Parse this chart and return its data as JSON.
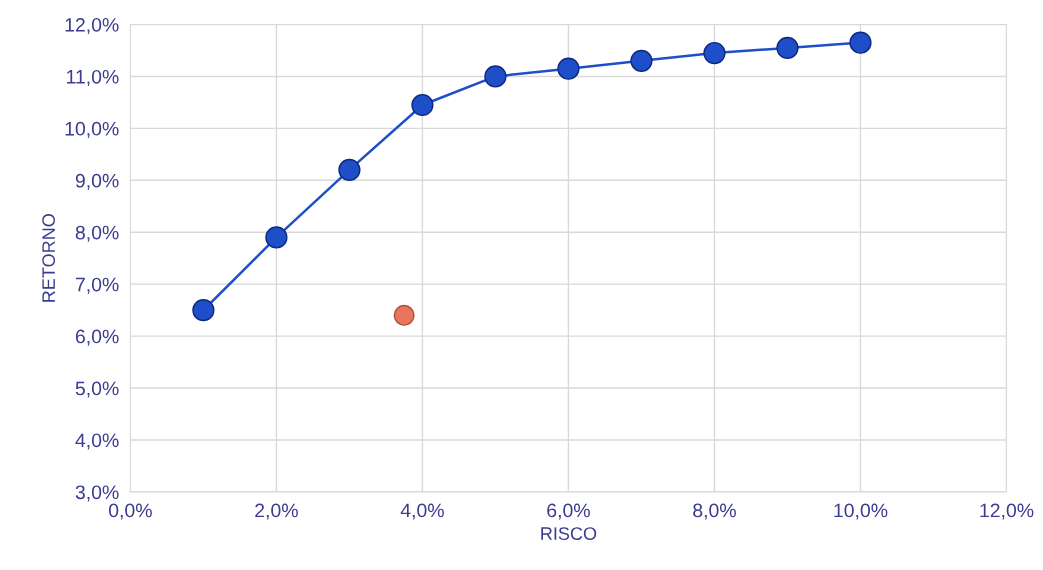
{
  "chart_data": {
    "type": "line",
    "xlabel": "RISCO",
    "ylabel": "RETORNO",
    "series": [
      {
        "color": "#1f4fc8",
        "marker": "circle",
        "x": [
          1,
          2,
          3,
          4,
          5,
          6,
          7,
          8,
          9,
          10
        ],
        "values": [
          6.5,
          7.9,
          9.2,
          10.45,
          11.0,
          11.15,
          11.3,
          11.45,
          11.55,
          11.65
        ]
      },
      {
        "type": "scatter",
        "color": "#e8765c",
        "marker": "circle",
        "x": [
          3.75
        ],
        "values": [
          6.4
        ]
      }
    ],
    "xlim": [
      0,
      12
    ],
    "xticks": [
      {
        "value": 0,
        "label": "0,0%"
      },
      {
        "value": 2,
        "label": "2,0%"
      },
      {
        "value": 4,
        "label": "4,0%"
      },
      {
        "value": 6,
        "label": "6,0%"
      },
      {
        "value": 8,
        "label": "8,0%"
      },
      {
        "value": 10,
        "label": "10,0%"
      },
      {
        "value": 12,
        "label": "12,0%"
      }
    ],
    "ylim": [
      3,
      12
    ],
    "yticks": [
      {
        "value": 3,
        "label": "3,0%"
      },
      {
        "value": 4,
        "label": "4,0%"
      },
      {
        "value": 5,
        "label": "5,0%"
      },
      {
        "value": 6,
        "label": "6,0%"
      },
      {
        "value": 7,
        "label": "7,0%"
      },
      {
        "value": 8,
        "label": "8,0%"
      },
      {
        "value": 9,
        "label": "9,0%"
      },
      {
        "value": 10,
        "label": "10,0%"
      },
      {
        "value": 11,
        "label": "11,0%"
      },
      {
        "value": 12,
        "label": "12,0%"
      }
    ],
    "grid": true
  }
}
